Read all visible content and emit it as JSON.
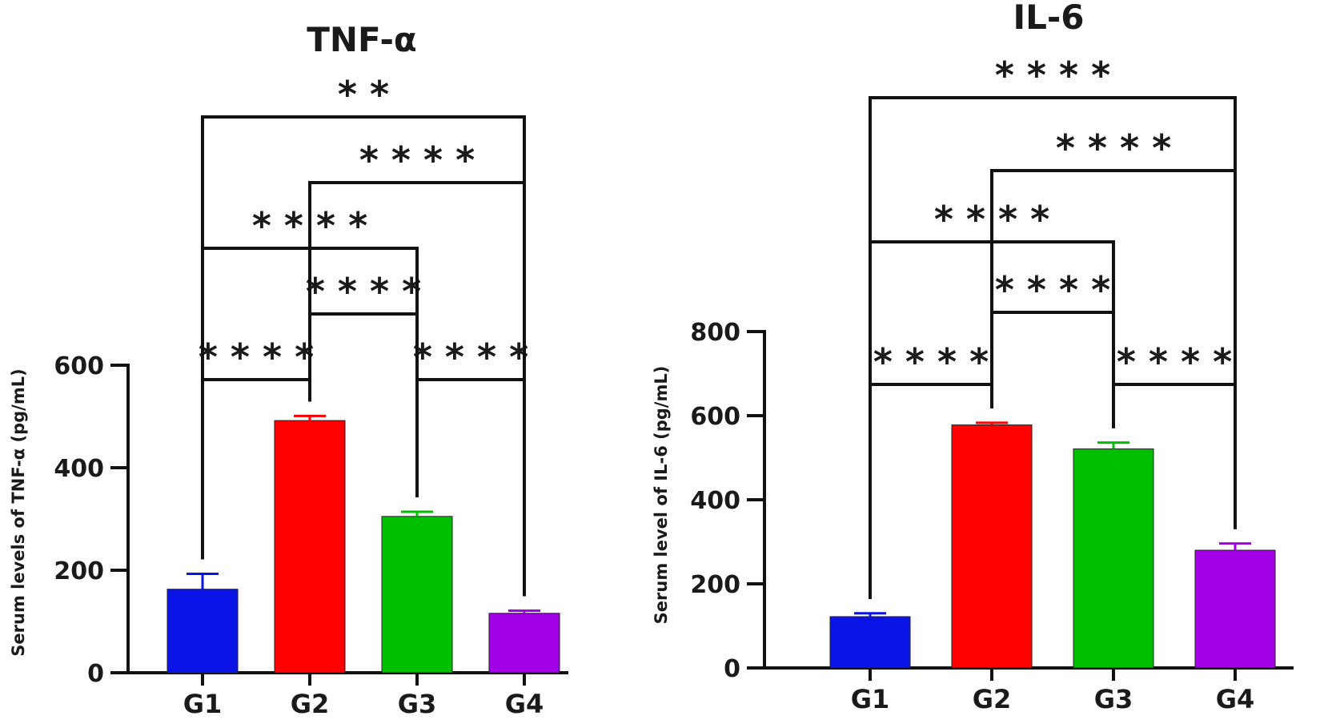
{
  "chart_data": [
    {
      "type": "bar",
      "title": "TNF-α",
      "ylabel": "Serum levels of TNF-α (pg/mL)",
      "xlabel": "",
      "categories": [
        "G1",
        "G2",
        "G3",
        "G4"
      ],
      "values": [
        163,
        492,
        305,
        116
      ],
      "errors": [
        30,
        9,
        9,
        5
      ],
      "colors": [
        "#0a14e6",
        "#ff0000",
        "#00bf00",
        "#a100e6"
      ],
      "ylim": [
        0,
        600
      ],
      "yticks": [
        0,
        200,
        400,
        600
      ],
      "comparisons": [
        {
          "from": "G1",
          "to": "G2",
          "label": "* * * *"
        },
        {
          "from": "G3",
          "to": "G4",
          "label": "* * * *"
        },
        {
          "from": "G2",
          "to": "G3",
          "label": "* * * *"
        },
        {
          "from": "G1",
          "to": "G3",
          "label": "* * * *"
        },
        {
          "from": "G2",
          "to": "G4",
          "label": "* * * *"
        },
        {
          "from": "G1",
          "to": "G4",
          "label": "* *"
        }
      ]
    },
    {
      "type": "bar",
      "title": "IL-6",
      "ylabel": "Serum level of IL-6 (pg/mL)",
      "xlabel": "",
      "categories": [
        "G1",
        "G2",
        "G3",
        "G4"
      ],
      "values": [
        122,
        578,
        521,
        280
      ],
      "errors": [
        8,
        5,
        15,
        16
      ],
      "colors": [
        "#0a14e6",
        "#ff0000",
        "#00bf00",
        "#a100e6"
      ],
      "ylim": [
        0,
        800
      ],
      "yticks": [
        0,
        200,
        400,
        600,
        800
      ],
      "comparisons": [
        {
          "from": "G1",
          "to": "G2",
          "label": "* * * *"
        },
        {
          "from": "G3",
          "to": "G4",
          "label": "* * * *"
        },
        {
          "from": "G2",
          "to": "G3",
          "label": "* * * *"
        },
        {
          "from": "G1",
          "to": "G3",
          "label": "* * * *"
        },
        {
          "from": "G2",
          "to": "G4",
          "label": "* * * *"
        },
        {
          "from": "G1",
          "to": "G4",
          "label": "* * * *"
        }
      ]
    }
  ]
}
